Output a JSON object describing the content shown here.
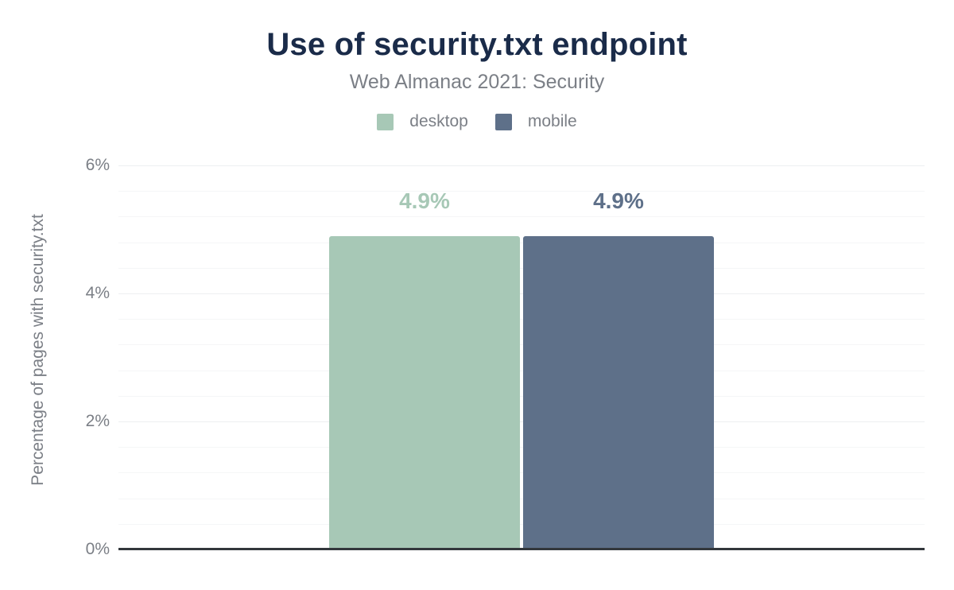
{
  "chart_data": {
    "type": "bar",
    "title": "Use of security.txt endpoint",
    "subtitle": "Web Almanac 2021: Security",
    "ylabel": "Percentage of pages with security.txt",
    "xlabel": "",
    "ylim": [
      0,
      6
    ],
    "yticks": [
      {
        "value": 0,
        "label": "0%"
      },
      {
        "value": 2,
        "label": "2%"
      },
      {
        "value": 4,
        "label": "4%"
      },
      {
        "value": 6,
        "label": "6%"
      }
    ],
    "grid": {
      "minor_step": 0.4,
      "major_step": 2,
      "orientation": "horizontal"
    },
    "legend_position": "top",
    "series": [
      {
        "name": "desktop",
        "value": 4.9,
        "label": "4.9%",
        "color": "#a7c8b6"
      },
      {
        "name": "mobile",
        "value": 4.9,
        "label": "4.9%",
        "color": "#5e7089"
      }
    ]
  },
  "colors": {
    "background": "#ffffff",
    "title": "#1a2b49",
    "secondary_text": "#7b7f86",
    "axis_line": "#33373c",
    "gridline_minor": "#f5f6f7",
    "gridline_major": "#edeff1"
  }
}
